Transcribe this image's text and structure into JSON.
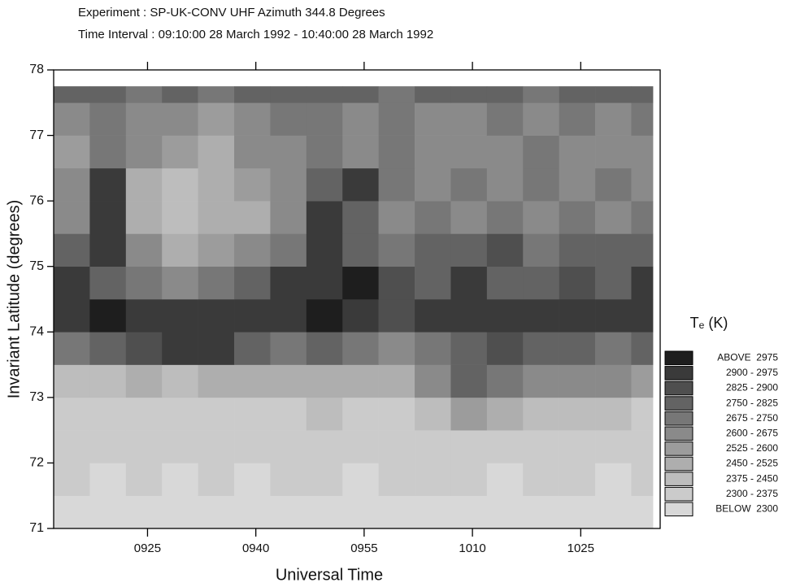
{
  "header": {
    "experiment": "Experiment : SP-UK-CONV     UHF Azimuth 344.8 Degrees",
    "time_interval": "Time Interval : 09:10:00 28 March 1992  - 10:40:00 28 March 1992"
  },
  "chart_data": {
    "type": "heatmap",
    "xlabel": "Universal Time",
    "ylabel": "Invariant Latitude (degrees)",
    "xlim": [
      552,
      636
    ],
    "xticks": [
      {
        "value": 565,
        "label": "0925"
      },
      {
        "value": 580,
        "label": "0940"
      },
      {
        "value": 595,
        "label": "0955"
      },
      {
        "value": 610,
        "label": "1010"
      },
      {
        "value": 625,
        "label": "1025"
      }
    ],
    "ylim": [
      71,
      78
    ],
    "yticks": [
      71,
      72,
      73,
      74,
      75,
      76,
      77,
      78
    ],
    "x_bins": [
      552,
      557,
      562,
      567,
      572,
      577,
      582,
      587,
      592,
      597,
      602,
      607,
      612,
      617,
      622,
      627,
      632,
      635
    ],
    "y_bins": [
      71,
      71.5,
      72,
      72.5,
      73,
      73.5,
      74,
      74.5,
      75,
      75.5,
      76,
      76.5,
      77,
      77.5,
      77.75
    ],
    "values": [
      [
        2290,
        2280,
        2290,
        2280,
        2270,
        2290,
        2280,
        2290,
        2280,
        2290,
        2280,
        2290,
        2280,
        2290,
        2280,
        2290,
        2280
      ],
      [
        2300,
        2290,
        2310,
        2290,
        2300,
        2290,
        2300,
        2310,
        2290,
        2300,
        2310,
        2300,
        2290,
        2300,
        2310,
        2290,
        2300
      ],
      [
        2320,
        2310,
        2330,
        2320,
        2310,
        2330,
        2320,
        2340,
        2320,
        2330,
        2340,
        2350,
        2330,
        2320,
        2340,
        2330,
        2320
      ],
      [
        2340,
        2350,
        2360,
        2350,
        2340,
        2360,
        2370,
        2380,
        2360,
        2370,
        2420,
        2550,
        2450,
        2400,
        2380,
        2390,
        2370
      ],
      [
        2420,
        2430,
        2450,
        2440,
        2460,
        2480,
        2450,
        2470,
        2480,
        2500,
        2650,
        2750,
        2700,
        2650,
        2600,
        2620,
        2580
      ],
      [
        2700,
        2750,
        2850,
        2900,
        2950,
        2800,
        2700,
        2750,
        2700,
        2650,
        2700,
        2800,
        2850,
        2750,
        2800,
        2700,
        2750
      ],
      [
        2950,
        3000,
        2950,
        2900,
        2950,
        2900,
        2950,
        3000,
        2950,
        2850,
        2900,
        2950,
        2950,
        2900,
        2950,
        2900,
        2950
      ],
      [
        2950,
        2800,
        2700,
        2650,
        2700,
        2750,
        2900,
        2950,
        3000,
        2850,
        2800,
        2900,
        2750,
        2800,
        2850,
        2800,
        2950
      ],
      [
        2800,
        2950,
        2600,
        2500,
        2550,
        2600,
        2700,
        2950,
        2800,
        2700,
        2800,
        2750,
        2850,
        2700,
        2800,
        2750,
        2800
      ],
      [
        2650,
        2950,
        2450,
        2400,
        2450,
        2500,
        2650,
        2900,
        2750,
        2650,
        2700,
        2600,
        2700,
        2650,
        2700,
        2650,
        2700
      ],
      [
        2600,
        2950,
        2500,
        2400,
        2450,
        2550,
        2650,
        2800,
        2950,
        2700,
        2650,
        2700,
        2650,
        2700,
        2650,
        2700,
        2650
      ],
      [
        2550,
        2700,
        2600,
        2550,
        2500,
        2600,
        2650,
        2700,
        2650,
        2700,
        2650,
        2600,
        2650,
        2700,
        2650,
        2600,
        2650
      ],
      [
        2650,
        2700,
        2650,
        2600,
        2550,
        2650,
        2700,
        2700,
        2650,
        2700,
        2600,
        2650,
        2700,
        2650,
        2700,
        2650,
        2700
      ],
      [
        2800,
        2750,
        2700,
        2750,
        2700,
        2800,
        2750,
        2750,
        2800,
        2700,
        2750,
        2800,
        2750,
        2700,
        2800,
        2750,
        2800
      ]
    ],
    "colorbar": {
      "title": "Tₑ (K)",
      "bounds": [
        2300,
        2375,
        2450,
        2525,
        2600,
        2675,
        2750,
        2825,
        2900,
        2975
      ],
      "labels": [
        "BELOW  2300",
        "2300 - 2375",
        "2375 - 2450",
        "2450 - 2525",
        "2525 - 2600",
        "2600 - 2675",
        "2675 - 2750",
        "2750 - 2825",
        "2825 - 2900",
        "2900 - 2975",
        "ABOVE  2975"
      ],
      "colors": [
        "#d8d8d8",
        "#cbcbcb",
        "#bdbdbd",
        "#aeaeae",
        "#9c9c9c",
        "#8a8a8a",
        "#777777",
        "#636363",
        "#4f4f4f",
        "#3a3a3a",
        "#1e1e1e"
      ]
    }
  }
}
